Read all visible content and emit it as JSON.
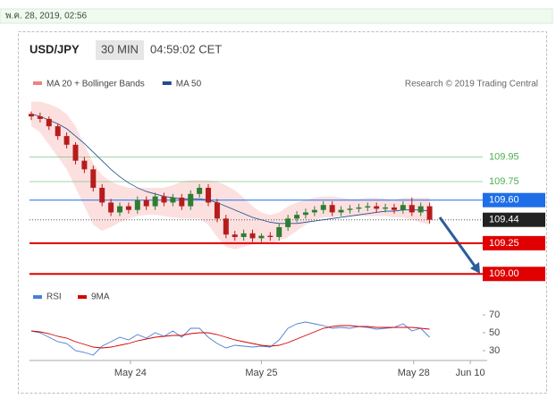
{
  "timestamp": "พ.ค. 28, 2019, 02:56",
  "symbol": "USD/JPY",
  "interval": "30 MIN",
  "time": "04:59:02 CET",
  "credit": "Research © 2019 Trading Central",
  "chart_data": [
    {
      "type": "candlestick",
      "legend": [
        {
          "name": "MA 20 + Bollinger Bands",
          "color": "#f08080"
        },
        {
          "name": "MA 50",
          "color": "#1f4e8c"
        }
      ],
      "up_color": "#2e7d32",
      "down_color": "#b71c1c",
      "xlim": [
        -0.2,
        51
      ],
      "ylim": [
        108.9,
        110.39
      ],
      "xticks": [
        {
          "value": 11.2,
          "label": "May 24"
        },
        {
          "value": 26,
          "label": "May 25"
        },
        {
          "value": 43.2,
          "label": "May 28"
        },
        {
          "value": 49.6,
          "label": "Jun 10"
        }
      ],
      "open": [
        110.3,
        110.28,
        110.26,
        110.2,
        110.12,
        110.05,
        109.92,
        109.85,
        109.7,
        109.58,
        109.5,
        109.55,
        109.52,
        109.6,
        109.55,
        109.63,
        109.58,
        109.62,
        109.55,
        109.65,
        109.7,
        109.58,
        109.45,
        109.32,
        109.3,
        109.33,
        109.29,
        109.31,
        109.3,
        109.38,
        109.45,
        109.48,
        109.5,
        109.52,
        109.56,
        109.5,
        109.52,
        109.53,
        109.54,
        109.55,
        109.53,
        109.54,
        109.52,
        109.56,
        109.5,
        109.55
      ],
      "high": [
        110.32,
        110.31,
        110.28,
        110.22,
        110.15,
        110.07,
        109.95,
        109.88,
        109.73,
        109.61,
        109.58,
        109.58,
        109.63,
        109.63,
        109.66,
        109.66,
        109.65,
        109.65,
        109.68,
        109.73,
        109.73,
        109.61,
        109.48,
        109.35,
        109.36,
        109.36,
        109.33,
        109.34,
        109.41,
        109.48,
        109.51,
        109.53,
        109.55,
        109.59,
        109.59,
        109.55,
        109.56,
        109.57,
        109.58,
        109.58,
        109.57,
        109.57,
        109.59,
        109.62,
        109.58,
        109.58
      ],
      "low": [
        110.25,
        110.23,
        110.17,
        110.09,
        110.02,
        109.89,
        109.82,
        109.67,
        109.55,
        109.47,
        109.47,
        109.49,
        109.49,
        109.52,
        109.52,
        109.55,
        109.55,
        109.52,
        109.52,
        109.62,
        109.55,
        109.42,
        109.29,
        109.27,
        109.27,
        109.26,
        109.26,
        109.27,
        109.27,
        109.35,
        109.42,
        109.45,
        109.47,
        109.49,
        109.47,
        109.47,
        109.49,
        109.5,
        109.51,
        109.5,
        109.5,
        109.49,
        109.49,
        109.47,
        109.47,
        109.41
      ],
      "close": [
        110.28,
        110.26,
        110.2,
        110.12,
        110.05,
        109.92,
        109.85,
        109.7,
        109.58,
        109.5,
        109.55,
        109.52,
        109.6,
        109.55,
        109.63,
        109.58,
        109.62,
        109.55,
        109.65,
        109.7,
        109.58,
        109.45,
        109.32,
        109.3,
        109.33,
        109.29,
        109.31,
        109.3,
        109.38,
        109.45,
        109.48,
        109.5,
        109.52,
        109.56,
        109.5,
        109.52,
        109.53,
        109.54,
        109.55,
        109.53,
        109.54,
        109.52,
        109.56,
        109.5,
        109.55,
        109.44
      ],
      "ma50": [
        110.3,
        110.28,
        110.25,
        110.22,
        110.18,
        110.12,
        110.06,
        109.99,
        109.92,
        109.85,
        109.79,
        109.74,
        109.7,
        109.67,
        109.65,
        109.63,
        109.62,
        109.61,
        109.61,
        109.61,
        109.6,
        109.58,
        109.55,
        109.52,
        109.49,
        109.46,
        109.44,
        109.42,
        109.41,
        109.41,
        109.41,
        109.42,
        109.43,
        109.44,
        109.45,
        109.46,
        109.47,
        109.48,
        109.49,
        109.5,
        109.51,
        109.51,
        109.52,
        109.52,
        109.52,
        109.51
      ],
      "band_upper": [
        110.4,
        110.4,
        110.38,
        110.35,
        110.3,
        110.2,
        110.05,
        109.9,
        109.8,
        109.75,
        109.72,
        109.7,
        109.7,
        109.7,
        109.7,
        109.7,
        109.72,
        109.75,
        109.76,
        109.76,
        109.76,
        109.75,
        109.72,
        109.68,
        109.62,
        109.55,
        109.5,
        109.48,
        109.5,
        109.55,
        109.58,
        109.6,
        109.62,
        109.63,
        109.63,
        109.62,
        109.61,
        109.61,
        109.62,
        109.62,
        109.61,
        109.6,
        109.62,
        109.62,
        109.62,
        109.62
      ],
      "band_lower": [
        110.2,
        110.15,
        110.05,
        109.95,
        109.85,
        109.7,
        109.55,
        109.4,
        109.35,
        109.38,
        109.42,
        109.45,
        109.47,
        109.48,
        109.48,
        109.47,
        109.46,
        109.45,
        109.45,
        109.45,
        109.4,
        109.3,
        109.22,
        109.2,
        109.22,
        109.24,
        109.25,
        109.25,
        109.27,
        109.3,
        109.35,
        109.4,
        109.44,
        109.46,
        109.46,
        109.47,
        109.47,
        109.47,
        109.47,
        109.47,
        109.47,
        109.46,
        109.46,
        109.44,
        109.42,
        109.4
      ],
      "levels": [
        {
          "value": 109.95,
          "label": "109.95",
          "color": "#4caf50",
          "style": "text"
        },
        {
          "value": 109.75,
          "label": "109.75",
          "color": "#4caf50",
          "style": "text"
        },
        {
          "value": 109.6,
          "label": "109.60",
          "color": "#1e6ee8",
          "style": "box"
        },
        {
          "value": 109.44,
          "label": "109.44",
          "color": "#222222",
          "style": "box"
        },
        {
          "value": 109.25,
          "label": "109.25",
          "color": "#e00000",
          "style": "box"
        },
        {
          "value": 109,
          "label": "109.00",
          "color": "#e00000",
          "style": "box"
        }
      ]
    },
    {
      "type": "line",
      "ylim": [
        22,
        79
      ],
      "yticks": [
        70,
        50,
        30
      ],
      "series": [
        {
          "name": "RSI",
          "color": "#4a7fd6",
          "values": [
            52,
            50,
            45,
            40,
            38,
            30,
            28,
            25,
            35,
            40,
            45,
            42,
            48,
            44,
            50,
            46,
            52,
            45,
            55,
            55,
            45,
            38,
            33,
            36,
            35,
            34,
            35,
            34,
            42,
            55,
            60,
            62,
            60,
            58,
            55,
            56,
            55,
            57,
            56,
            54,
            55,
            56,
            60,
            52,
            55,
            45
          ]
        },
        {
          "name": "9MA",
          "color": "#d40000",
          "values": [
            52,
            51,
            49,
            46,
            44,
            40,
            37,
            34,
            33,
            34,
            36,
            38,
            41,
            43,
            45,
            46,
            47,
            47,
            49,
            50,
            50,
            48,
            45,
            42,
            40,
            38,
            36,
            35,
            36,
            39,
            43,
            47,
            51,
            55,
            57,
            58,
            58,
            57,
            57,
            56,
            56,
            56,
            56,
            56,
            55,
            54
          ]
        }
      ]
    }
  ]
}
